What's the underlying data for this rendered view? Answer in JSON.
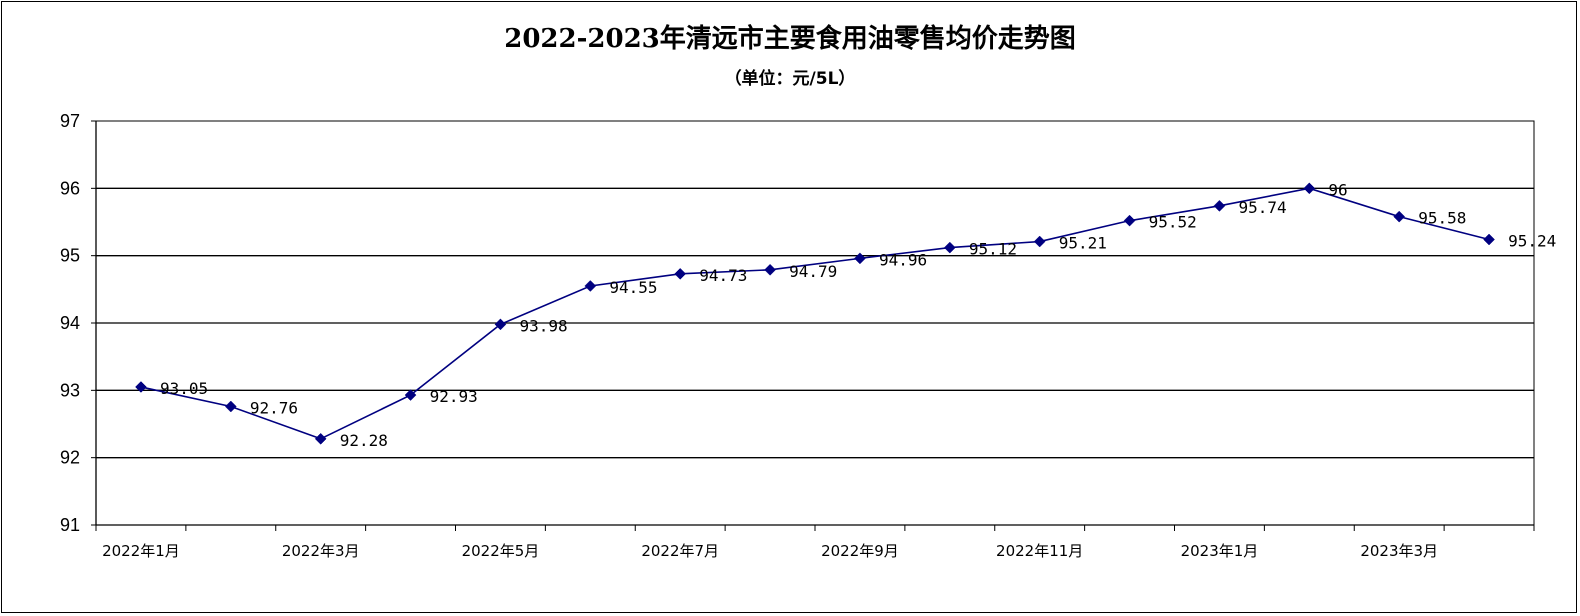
{
  "chart_data": {
    "type": "line",
    "title": "2022-2023年清远市主要食用油零售均价走势图",
    "subtitle": "（单位：元/5L）",
    "xlabel": "",
    "ylabel": "",
    "ylim": [
      91,
      97
    ],
    "yticks": [
      "91",
      "92",
      "93",
      "94",
      "95",
      "96",
      "97"
    ],
    "grid": true,
    "categories": [
      "2022年1月",
      "2022年2月",
      "2022年3月",
      "2022年4月",
      "2022年5月",
      "2022年6月",
      "2022年7月",
      "2022年8月",
      "2022年9月",
      "2022年10月",
      "2022年11月",
      "2022年12月",
      "2023年1月",
      "2023年2月",
      "2023年3月",
      "2023年4月"
    ],
    "category_tick_labels": [
      "2022年1月",
      "",
      "2022年3月",
      "",
      "2022年5月",
      "",
      "2022年7月",
      "",
      "2022年9月",
      "",
      "2022年11月",
      "",
      "2023年1月",
      "",
      "2023年3月",
      ""
    ],
    "series": [
      {
        "values": [
          93.05,
          92.76,
          92.28,
          92.93,
          93.98,
          94.55,
          94.73,
          94.79,
          94.96,
          95.12,
          95.21,
          95.52,
          95.74,
          96,
          95.58,
          95.24
        ],
        "data_labels": [
          "93.05",
          "92.76",
          "92.28",
          "92.93",
          "93.98",
          "94.55",
          "94.73",
          "94.79",
          "94.96",
          "95.12",
          "95.21",
          "95.52",
          "95.74",
          "96",
          "95.58",
          "95.24"
        ],
        "color": "#000080",
        "marker": "diamond"
      }
    ]
  }
}
